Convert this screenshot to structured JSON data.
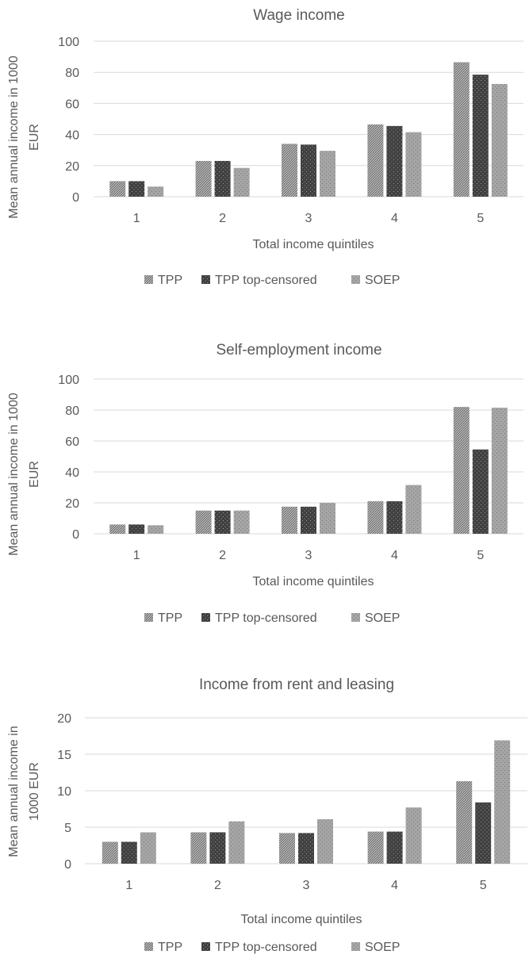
{
  "chart_data": [
    {
      "type": "bar",
      "title": "Wage income",
      "xlabel": "Total income quintiles",
      "ylabel": [
        "Mean annual income in 1000",
        "EUR"
      ],
      "categories": [
        "1",
        "2",
        "3",
        "4",
        "5"
      ],
      "ylim": [
        0,
        100
      ],
      "yticks": [
        0,
        20,
        40,
        60,
        80,
        100
      ],
      "series": [
        {
          "name": "TPP",
          "values": [
            10,
            23,
            34,
            46.5,
            86.5
          ]
        },
        {
          "name": "TPP top-censored",
          "values": [
            10,
            23,
            33.5,
            45.5,
            78.5
          ]
        },
        {
          "name": "SOEP",
          "values": [
            6.5,
            18.5,
            29.5,
            41.5,
            72.5
          ]
        }
      ],
      "grid": true,
      "legend": "bottom"
    },
    {
      "type": "bar",
      "title": "Self-employment  income",
      "xlabel": "Total income quintiles",
      "ylabel": [
        "Mean annual income in 1000",
        "EUR"
      ],
      "categories": [
        "1",
        "2",
        "3",
        "4",
        "5"
      ],
      "ylim": [
        0,
        100
      ],
      "yticks": [
        0,
        20,
        40,
        60,
        80,
        100
      ],
      "series": [
        {
          "name": "TPP",
          "values": [
            6,
            15,
            17.5,
            21,
            82
          ]
        },
        {
          "name": "TPP top-censored",
          "values": [
            6,
            15,
            17.5,
            21,
            54.5
          ]
        },
        {
          "name": "SOEP",
          "values": [
            5.5,
            15,
            20,
            31.5,
            81.5
          ]
        }
      ],
      "grid": true,
      "legend": "bottom"
    },
    {
      "type": "bar",
      "title": "Income from rent and leasing",
      "xlabel": "Total income quintiles",
      "ylabel": [
        "Mean annual income in",
        "1000 EUR"
      ],
      "categories": [
        "1",
        "2",
        "3",
        "4",
        "5"
      ],
      "ylim": [
        0,
        20
      ],
      "yticks": [
        0,
        5,
        10,
        15,
        20
      ],
      "series": [
        {
          "name": "TPP",
          "values": [
            3,
            4.3,
            4.2,
            4.4,
            11.3
          ]
        },
        {
          "name": "TPP top-censored",
          "values": [
            3,
            4.3,
            4.2,
            4.4,
            8.4
          ]
        },
        {
          "name": "SOEP",
          "values": [
            4.3,
            5.8,
            6.1,
            7.7,
            16.9
          ]
        }
      ],
      "grid": true,
      "legend": "bottom"
    }
  ],
  "colors": {
    "tpp": "#7f7f7f",
    "tpp_top_censored": "#404040",
    "soep": "#a6a6a6",
    "grid": "#d9d9d9",
    "text": "#595959"
  }
}
